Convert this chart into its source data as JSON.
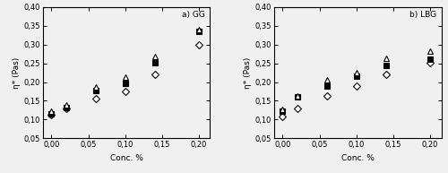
{
  "title_a": "a) GG",
  "title_b": "b) LBG",
  "xlabel": "Conc. %",
  "ylabel_a": "η* (Pas)",
  "ylabel_b": "η* (Pas)",
  "xlim": [
    -0.012,
    0.215
  ],
  "ylim": [
    0.05,
    0.4
  ],
  "yticks": [
    0.05,
    0.1,
    0.15,
    0.2,
    0.25,
    0.3,
    0.35,
    0.4
  ],
  "xticks": [
    0.0,
    0.05,
    0.1,
    0.15,
    0.2
  ],
  "xticklabels": [
    "0,00",
    "0,05",
    "0,10",
    "0,15",
    "0,20"
  ],
  "yticklabels": [
    "0,05",
    "0,10",
    "0,15",
    "0,20",
    "0,25",
    "0,30",
    "0,35",
    "0,40"
  ],
  "GG": {
    "day0_diamond": {
      "x": [
        0.0,
        0.02,
        0.06,
        0.1,
        0.14,
        0.2
      ],
      "y": [
        0.112,
        0.13,
        0.155,
        0.175,
        0.22,
        0.3
      ]
    },
    "day3_square": {
      "x": [
        0.0,
        0.02,
        0.06,
        0.1,
        0.14,
        0.2
      ],
      "y": [
        0.115,
        0.133,
        0.178,
        0.197,
        0.252,
        0.335
      ]
    },
    "day7_tri": {
      "x": [
        0.0,
        0.02,
        0.06,
        0.1,
        0.14,
        0.2
      ],
      "y": [
        0.122,
        0.14,
        0.188,
        0.213,
        0.268,
        0.34
      ]
    }
  },
  "LBG": {
    "day0_diamond": {
      "x": [
        0.0,
        0.02,
        0.06,
        0.1,
        0.14,
        0.2
      ],
      "y": [
        0.108,
        0.13,
        0.163,
        0.19,
        0.22,
        0.252
      ]
    },
    "day3_square": {
      "x": [
        0.0,
        0.02,
        0.06,
        0.1,
        0.14,
        0.2
      ],
      "y": [
        0.122,
        0.16,
        0.19,
        0.215,
        0.245,
        0.26
      ]
    },
    "day7_tri": {
      "x": [
        0.0,
        0.02,
        0.06,
        0.1,
        0.14,
        0.2
      ],
      "y": [
        0.128,
        0.163,
        0.207,
        0.226,
        0.263,
        0.283
      ]
    }
  },
  "diamond_marker": "D",
  "square_marker": "s",
  "tri_marker": "^",
  "open_color": "white",
  "edge_color": "black",
  "filled_color": "black",
  "marker_size": 4.5,
  "title_fontsize": 6.5,
  "axis_fontsize": 6.5,
  "tick_fontsize": 6.0,
  "bg_color": "#f0f0f0"
}
